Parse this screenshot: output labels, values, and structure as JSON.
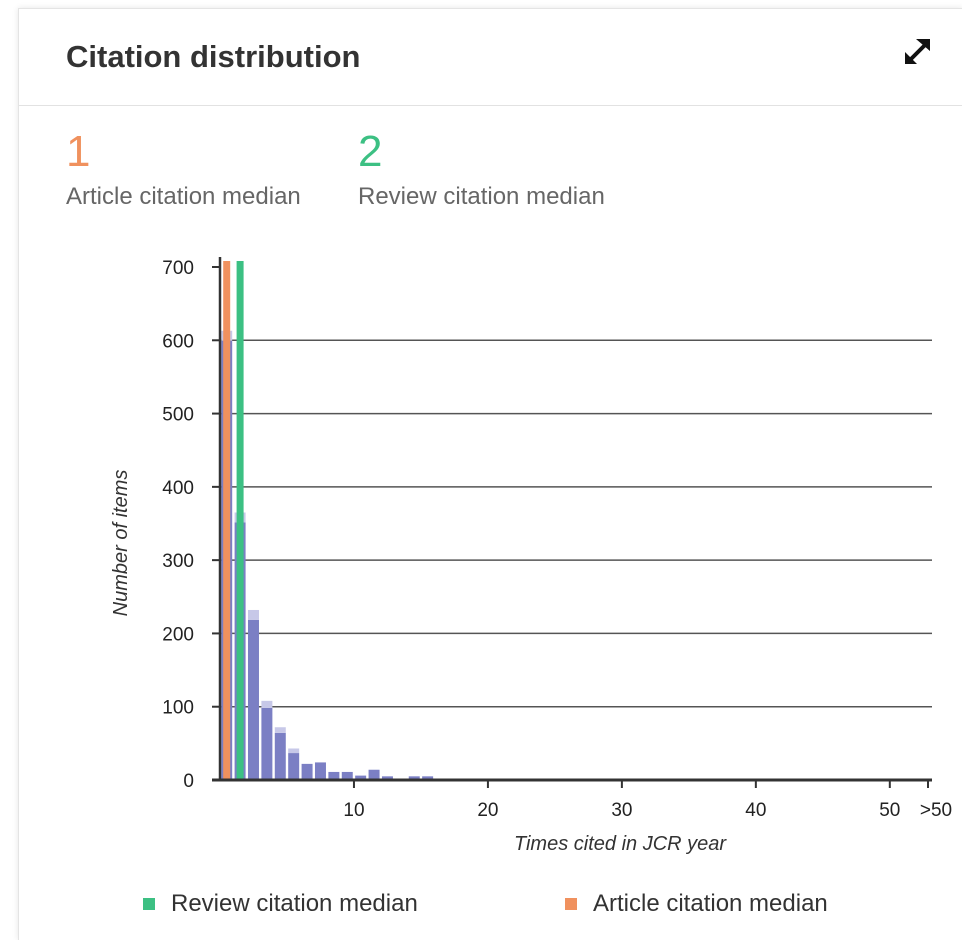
{
  "card": {
    "title": "Citation distribution"
  },
  "metrics": [
    {
      "value": "1",
      "label": "Article citation median",
      "color": "#f0915e"
    },
    {
      "value": "2",
      "label": "Review citation median",
      "color": "#3cc083"
    }
  ],
  "icons": {
    "expand": "expand-arrows-icon"
  },
  "colors": {
    "bar": "#7b7fc4",
    "bar_cap": "#c7c8e8",
    "article_median": "#f0915e",
    "review_median": "#3cc083",
    "grid": "#555555",
    "axis": "#333333"
  },
  "chart_data": {
    "type": "bar",
    "title": "",
    "xlabel": "Times cited in JCR year",
    "ylabel": "Number of items",
    "ylim": [
      0,
      700
    ],
    "yticks": [
      "0",
      "100",
      "200",
      "300",
      "400",
      "500",
      "600",
      "700"
    ],
    "xlim": [
      0,
      53
    ],
    "xticks": [
      "10",
      "20",
      "30",
      "40",
      "50",
      ">50"
    ],
    "grid": true,
    "x": [
      1,
      2,
      3,
      4,
      5,
      6,
      7,
      8,
      9,
      10,
      11,
      12,
      13,
      14,
      15,
      16
    ],
    "values": [
      613,
      365,
      232,
      108,
      72,
      43,
      22,
      24,
      11,
      11,
      6,
      14,
      5,
      2,
      5,
      5
    ],
    "medians": [
      {
        "name": "Review citation median",
        "x": 2
      },
      {
        "name": "Article citation median",
        "x": 1
      }
    ],
    "legend": [
      {
        "name": "Review citation median",
        "color": "#3cc083"
      },
      {
        "name": "Article citation median",
        "color": "#f0915e"
      }
    ],
    "legend_position": "bottom"
  }
}
